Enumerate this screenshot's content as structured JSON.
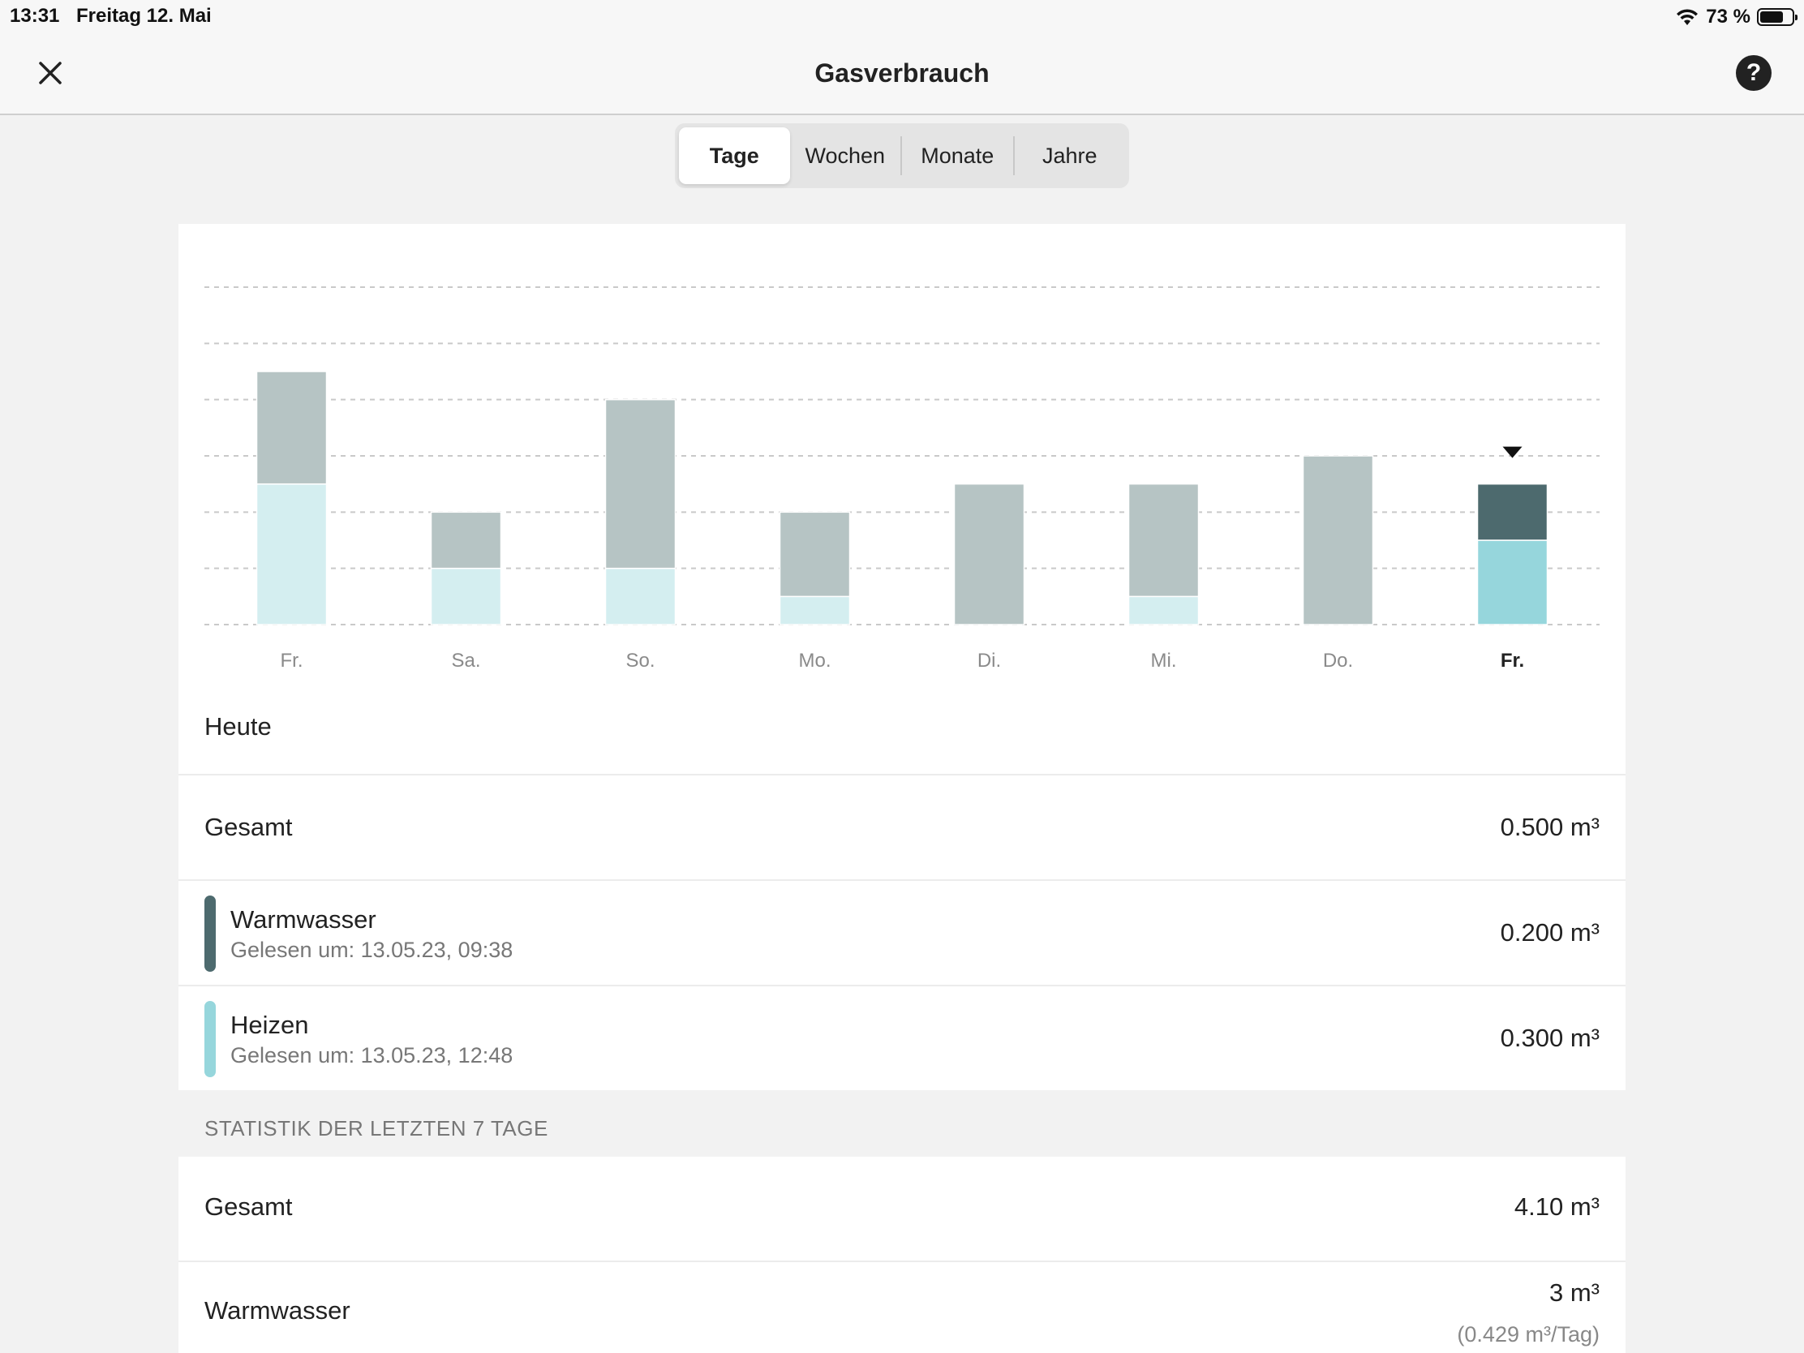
{
  "status_bar": {
    "time": "13:31",
    "date": "Freitag 12. Mai",
    "battery_percent": "73 %",
    "battery_level": 0.73
  },
  "nav": {
    "title": "Gasverbrauch",
    "close_icon": "close-icon",
    "help_icon": "help-icon",
    "help_glyph": "?"
  },
  "tabs": [
    {
      "label": "Tage",
      "active": true
    },
    {
      "label": "Wochen",
      "active": false
    },
    {
      "label": "Monate",
      "active": false
    },
    {
      "label": "Jahre",
      "active": false
    }
  ],
  "chart_data": {
    "type": "bar",
    "stacked": true,
    "categories": [
      "Fr.",
      "Sa.",
      "So.",
      "Mo.",
      "Di.",
      "Mi.",
      "Do.",
      "Fr."
    ],
    "selected_index": 7,
    "series": [
      {
        "name": "Heizen",
        "values": [
          0.5,
          0.2,
          0.2,
          0.1,
          0.0,
          0.1,
          0.0,
          0.3
        ],
        "color": "#d4eef0",
        "selected_color": "#96d6dc"
      },
      {
        "name": "Warmwasser",
        "values": [
          0.4,
          0.2,
          0.6,
          0.3,
          0.5,
          0.4,
          0.6,
          0.2
        ],
        "color": "#b6c4c4",
        "selected_color": "#4d6a6e"
      }
    ],
    "ylim": [
      0,
      1.2
    ],
    "gridlines": [
      0,
      0.2,
      0.4,
      0.6,
      0.8,
      1.0,
      1.2
    ],
    "grid": true
  },
  "today": {
    "label": "Heute",
    "total_label": "Gesamt",
    "total_value": "0.500 m³",
    "items": [
      {
        "name": "Warmwasser",
        "sub": "Gelesen um: 13.05.23, 09:38",
        "value": "0.200 m³",
        "color": "#4d6a6e"
      },
      {
        "name": "Heizen",
        "sub": "Gelesen um: 13.05.23, 12:48",
        "value": "0.300 m³",
        "color": "#96d6dc"
      }
    ]
  },
  "stats": {
    "header": "STATISTIK DER LETZTEN 7 TAGE",
    "total_label": "Gesamt",
    "total_value": "4.10 m³",
    "warmwasser_label": "Warmwasser",
    "warmwasser_value": "3 m³",
    "warmwasser_per_day": "(0.429 m³/Tag)"
  }
}
